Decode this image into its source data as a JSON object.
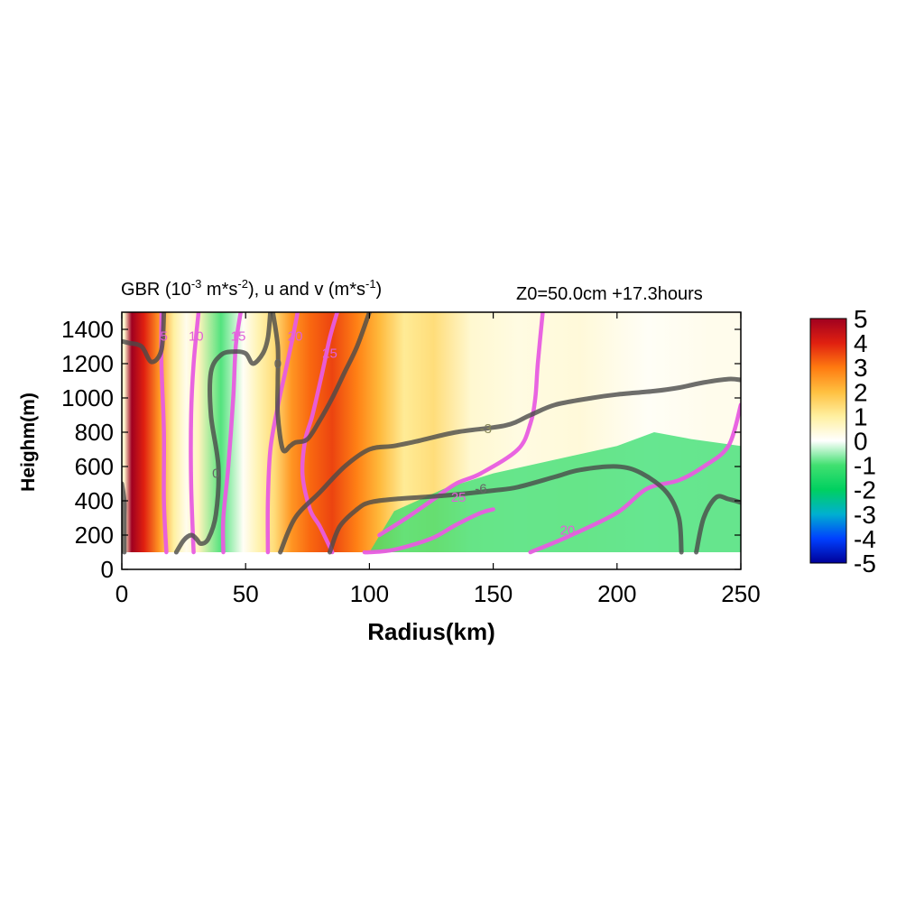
{
  "chart_data": {
    "type": "heatmap",
    "title_left": {
      "prefix": "GBR (10",
      "exp1": "-3",
      "mid1": " m*s",
      "exp2": "-2",
      "mid2": "), u and v (m*s",
      "exp3": "-1",
      "suffix": ")"
    },
    "title_right": "Z0=50.0cm  +17.3hours",
    "xlabel": "Radius(km)",
    "ylabel": "Heighm(m)",
    "xlim": [
      0,
      250
    ],
    "ylim": [
      0,
      1500
    ],
    "xticks": [
      "0",
      "50",
      "100",
      "150",
      "200",
      "250"
    ],
    "yticks": [
      "0",
      "200",
      "400",
      "600",
      "800",
      "1000",
      "1200",
      "1400"
    ],
    "colorbar": {
      "min": -5,
      "max": 5,
      "ticks": [
        "5",
        "4",
        "3",
        "2",
        "1",
        "0",
        "-1",
        "-2",
        "-3",
        "-4",
        "-5"
      ],
      "colors": [
        "#000098",
        "#0040ff",
        "#00b0d0",
        "#00d060",
        "#40e070",
        "#ffffff",
        "#fff0a0",
        "#ffc040",
        "#ff7a10",
        "#e02010",
        "#a00020"
      ]
    },
    "shading_bands": [
      {
        "x": [
          0,
          2
        ],
        "value": 0.5
      },
      {
        "x": [
          2,
          6
        ],
        "value": 5.0
      },
      {
        "x": [
          6,
          12
        ],
        "value": 4.0
      },
      {
        "x": [
          12,
          18
        ],
        "value": 2.6
      },
      {
        "x": [
          18,
          24
        ],
        "value": 1.0
      },
      {
        "x": [
          24,
          28
        ],
        "value": 0.2
      },
      {
        "x": [
          28,
          34
        ],
        "value": 0.7
      },
      {
        "x": [
          34,
          46
        ],
        "value": -0.9
      },
      {
        "x": [
          46,
          52
        ],
        "value": 0.1
      },
      {
        "x": [
          52,
          58
        ],
        "value": 0.8
      },
      {
        "x": [
          58,
          65
        ],
        "value": 1.4
      },
      {
        "x": [
          65,
          72
        ],
        "value": 2.6
      },
      {
        "x": [
          72,
          80
        ],
        "value": 3.2
      },
      {
        "x": [
          80,
          90
        ],
        "value": 3.6
      },
      {
        "x": [
          90,
          100
        ],
        "value": 2.9
      },
      {
        "x": [
          100,
          108
        ],
        "value": 2.1
      },
      {
        "x": [
          108,
          120
        ],
        "value": 1.1
      },
      {
        "x": [
          120,
          132
        ],
        "value": 1.4
      },
      {
        "x": [
          132,
          150
        ],
        "value": 0.5
      },
      {
        "x": [
          150,
          170
        ],
        "value": 0.3
      },
      {
        "x": [
          170,
          200
        ],
        "value": 0.4
      },
      {
        "x": [
          200,
          225
        ],
        "value": 0.1
      },
      {
        "x": [
          225,
          250
        ],
        "value": 0.2
      }
    ],
    "green_region": {
      "value": -1.2,
      "top": [
        [
          100,
          100
        ],
        [
          110,
          340
        ],
        [
          130,
          470
        ],
        [
          150,
          560
        ],
        [
          175,
          640
        ],
        [
          200,
          720
        ],
        [
          215,
          800
        ],
        [
          230,
          760
        ],
        [
          250,
          720
        ]
      ]
    },
    "data_floor_m": 100,
    "contours_v": [
      {
        "label": "5",
        "points": [
          [
            16,
            1500
          ],
          [
            16,
            1200
          ],
          [
            17,
            800
          ],
          [
            17,
            400
          ],
          [
            18,
            100
          ]
        ]
      },
      {
        "label": "10",
        "points": [
          [
            31,
            1500
          ],
          [
            29,
            1200
          ],
          [
            28,
            900
          ],
          [
            28,
            500
          ],
          [
            29,
            100
          ]
        ]
      },
      {
        "label": "15",
        "points": [
          [
            48,
            1500
          ],
          [
            46,
            1300
          ],
          [
            45,
            1000
          ],
          [
            43,
            600
          ],
          [
            41,
            300
          ],
          [
            41,
            100
          ]
        ]
      },
      {
        "label": "20",
        "points": [
          [
            71,
            1500
          ],
          [
            69,
            1350
          ],
          [
            66,
            1150
          ],
          [
            63,
            950
          ],
          [
            60,
            700
          ],
          [
            59,
            400
          ],
          [
            59,
            100
          ]
        ]
      },
      {
        "label": "25",
        "points": [
          [
            87,
            1500
          ],
          [
            84,
            1350
          ],
          [
            81,
            1150
          ],
          [
            77,
            900
          ],
          [
            74,
            750
          ],
          [
            73,
            550
          ],
          [
            76,
            350
          ],
          [
            80,
            250
          ],
          [
            85,
            100
          ]
        ]
      },
      {
        "label": "25",
        "points": [
          [
            98,
            100
          ],
          [
            100,
            100
          ],
          [
            110,
            115
          ],
          [
            125,
            180
          ],
          [
            135,
            260
          ],
          [
            145,
            330
          ],
          [
            150,
            350
          ]
        ]
      },
      {
        "label": "20",
        "points": [
          [
            170,
            1500
          ],
          [
            168,
            1200
          ],
          [
            167,
            1000
          ],
          [
            165,
            850
          ],
          [
            160,
            700
          ],
          [
            145,
            560
          ],
          [
            135,
            500
          ],
          [
            125,
            400
          ],
          [
            115,
            300
          ],
          [
            104,
            200
          ]
        ]
      },
      {
        "label": "20",
        "points": [
          [
            165,
            100
          ],
          [
            180,
            190
          ],
          [
            200,
            330
          ],
          [
            212,
            470
          ],
          [
            225,
            520
          ],
          [
            235,
            600
          ],
          [
            245,
            720
          ],
          [
            250,
            960
          ]
        ]
      }
    ],
    "contours_u": [
      {
        "label": "",
        "points": [
          [
            0,
            1330
          ],
          [
            3,
            1320
          ],
          [
            8,
            1300
          ],
          [
            12,
            1210
          ],
          [
            16,
            1280
          ],
          [
            17,
            1500
          ]
        ]
      },
      {
        "label": "",
        "points": [
          [
            0,
            500
          ],
          [
            1,
            400
          ],
          [
            1,
            300
          ],
          [
            1,
            100
          ]
        ]
      },
      {
        "label": "0",
        "points": [
          [
            22,
            100
          ],
          [
            25,
            170
          ],
          [
            28,
            200
          ],
          [
            30,
            180
          ],
          [
            32,
            150
          ],
          [
            35,
            180
          ],
          [
            38,
            320
          ],
          [
            39,
            600
          ],
          [
            36,
            900
          ],
          [
            36,
            1150
          ],
          [
            40,
            1250
          ],
          [
            45,
            1270
          ],
          [
            50,
            1260
          ],
          [
            53,
            1200
          ],
          [
            57,
            1260
          ],
          [
            59,
            1350
          ],
          [
            60,
            1500
          ]
        ]
      },
      {
        "label": "0",
        "points": [
          [
            61,
            1500
          ],
          [
            63,
            1300
          ],
          [
            63,
            1100
          ],
          [
            63,
            900
          ],
          [
            65,
            700
          ],
          [
            68,
            720
          ],
          [
            70,
            740
          ],
          [
            75,
            760
          ],
          [
            80,
            870
          ],
          [
            85,
            1000
          ],
          [
            90,
            1150
          ],
          [
            95,
            1300
          ],
          [
            100,
            1500
          ]
        ]
      },
      {
        "label": "-3",
        "points": [
          [
            64,
            100
          ],
          [
            70,
            300
          ],
          [
            80,
            450
          ],
          [
            90,
            600
          ],
          [
            100,
            700
          ],
          [
            110,
            720
          ],
          [
            120,
            750
          ],
          [
            135,
            800
          ],
          [
            155,
            840
          ],
          [
            165,
            900
          ],
          [
            175,
            960
          ],
          [
            190,
            1000
          ],
          [
            200,
            1020
          ],
          [
            215,
            1040
          ],
          [
            225,
            1060
          ],
          [
            235,
            1090
          ],
          [
            245,
            1110
          ],
          [
            250,
            1105
          ]
        ]
      },
      {
        "label": "-6",
        "points": [
          [
            84,
            100
          ],
          [
            88,
            250
          ],
          [
            95,
            350
          ],
          [
            100,
            390
          ],
          [
            110,
            410
          ],
          [
            130,
            430
          ],
          [
            150,
            460
          ],
          [
            160,
            480
          ],
          [
            175,
            540
          ],
          [
            185,
            580
          ],
          [
            200,
            600
          ],
          [
            210,
            560
          ],
          [
            220,
            450
          ],
          [
            225,
            300
          ],
          [
            226,
            100
          ]
        ]
      },
      {
        "label": "",
        "points": [
          [
            232,
            100
          ],
          [
            235,
            300
          ],
          [
            240,
            420
          ],
          [
            245,
            410
          ],
          [
            250,
            390
          ]
        ]
      }
    ],
    "contour_text": [
      {
        "text": "5",
        "x": 17,
        "y": 1360,
        "color": "#e060d8"
      },
      {
        "text": "10",
        "x": 30,
        "y": 1360,
        "color": "#e060d8"
      },
      {
        "text": "15",
        "x": 47,
        "y": 1360,
        "color": "#e060d8"
      },
      {
        "text": "20",
        "x": 70,
        "y": 1360,
        "color": "#e060d8"
      },
      {
        "text": "25",
        "x": 84,
        "y": 1260,
        "color": "#e060d8"
      },
      {
        "text": "0",
        "x": 38,
        "y": 560,
        "color": "#666666"
      },
      {
        "text": "0",
        "x": 63,
        "y": 1200,
        "color": "#666666"
      },
      {
        "text": "-3",
        "x": 147,
        "y": 820,
        "color": "#8a8a5a"
      },
      {
        "text": "25",
        "x": 136,
        "y": 420,
        "color": "#e060d8"
      },
      {
        "text": "-6",
        "x": 145,
        "y": 470,
        "color": "#666666"
      },
      {
        "text": "20",
        "x": 180,
        "y": 230,
        "color": "#e060d8"
      }
    ]
  }
}
